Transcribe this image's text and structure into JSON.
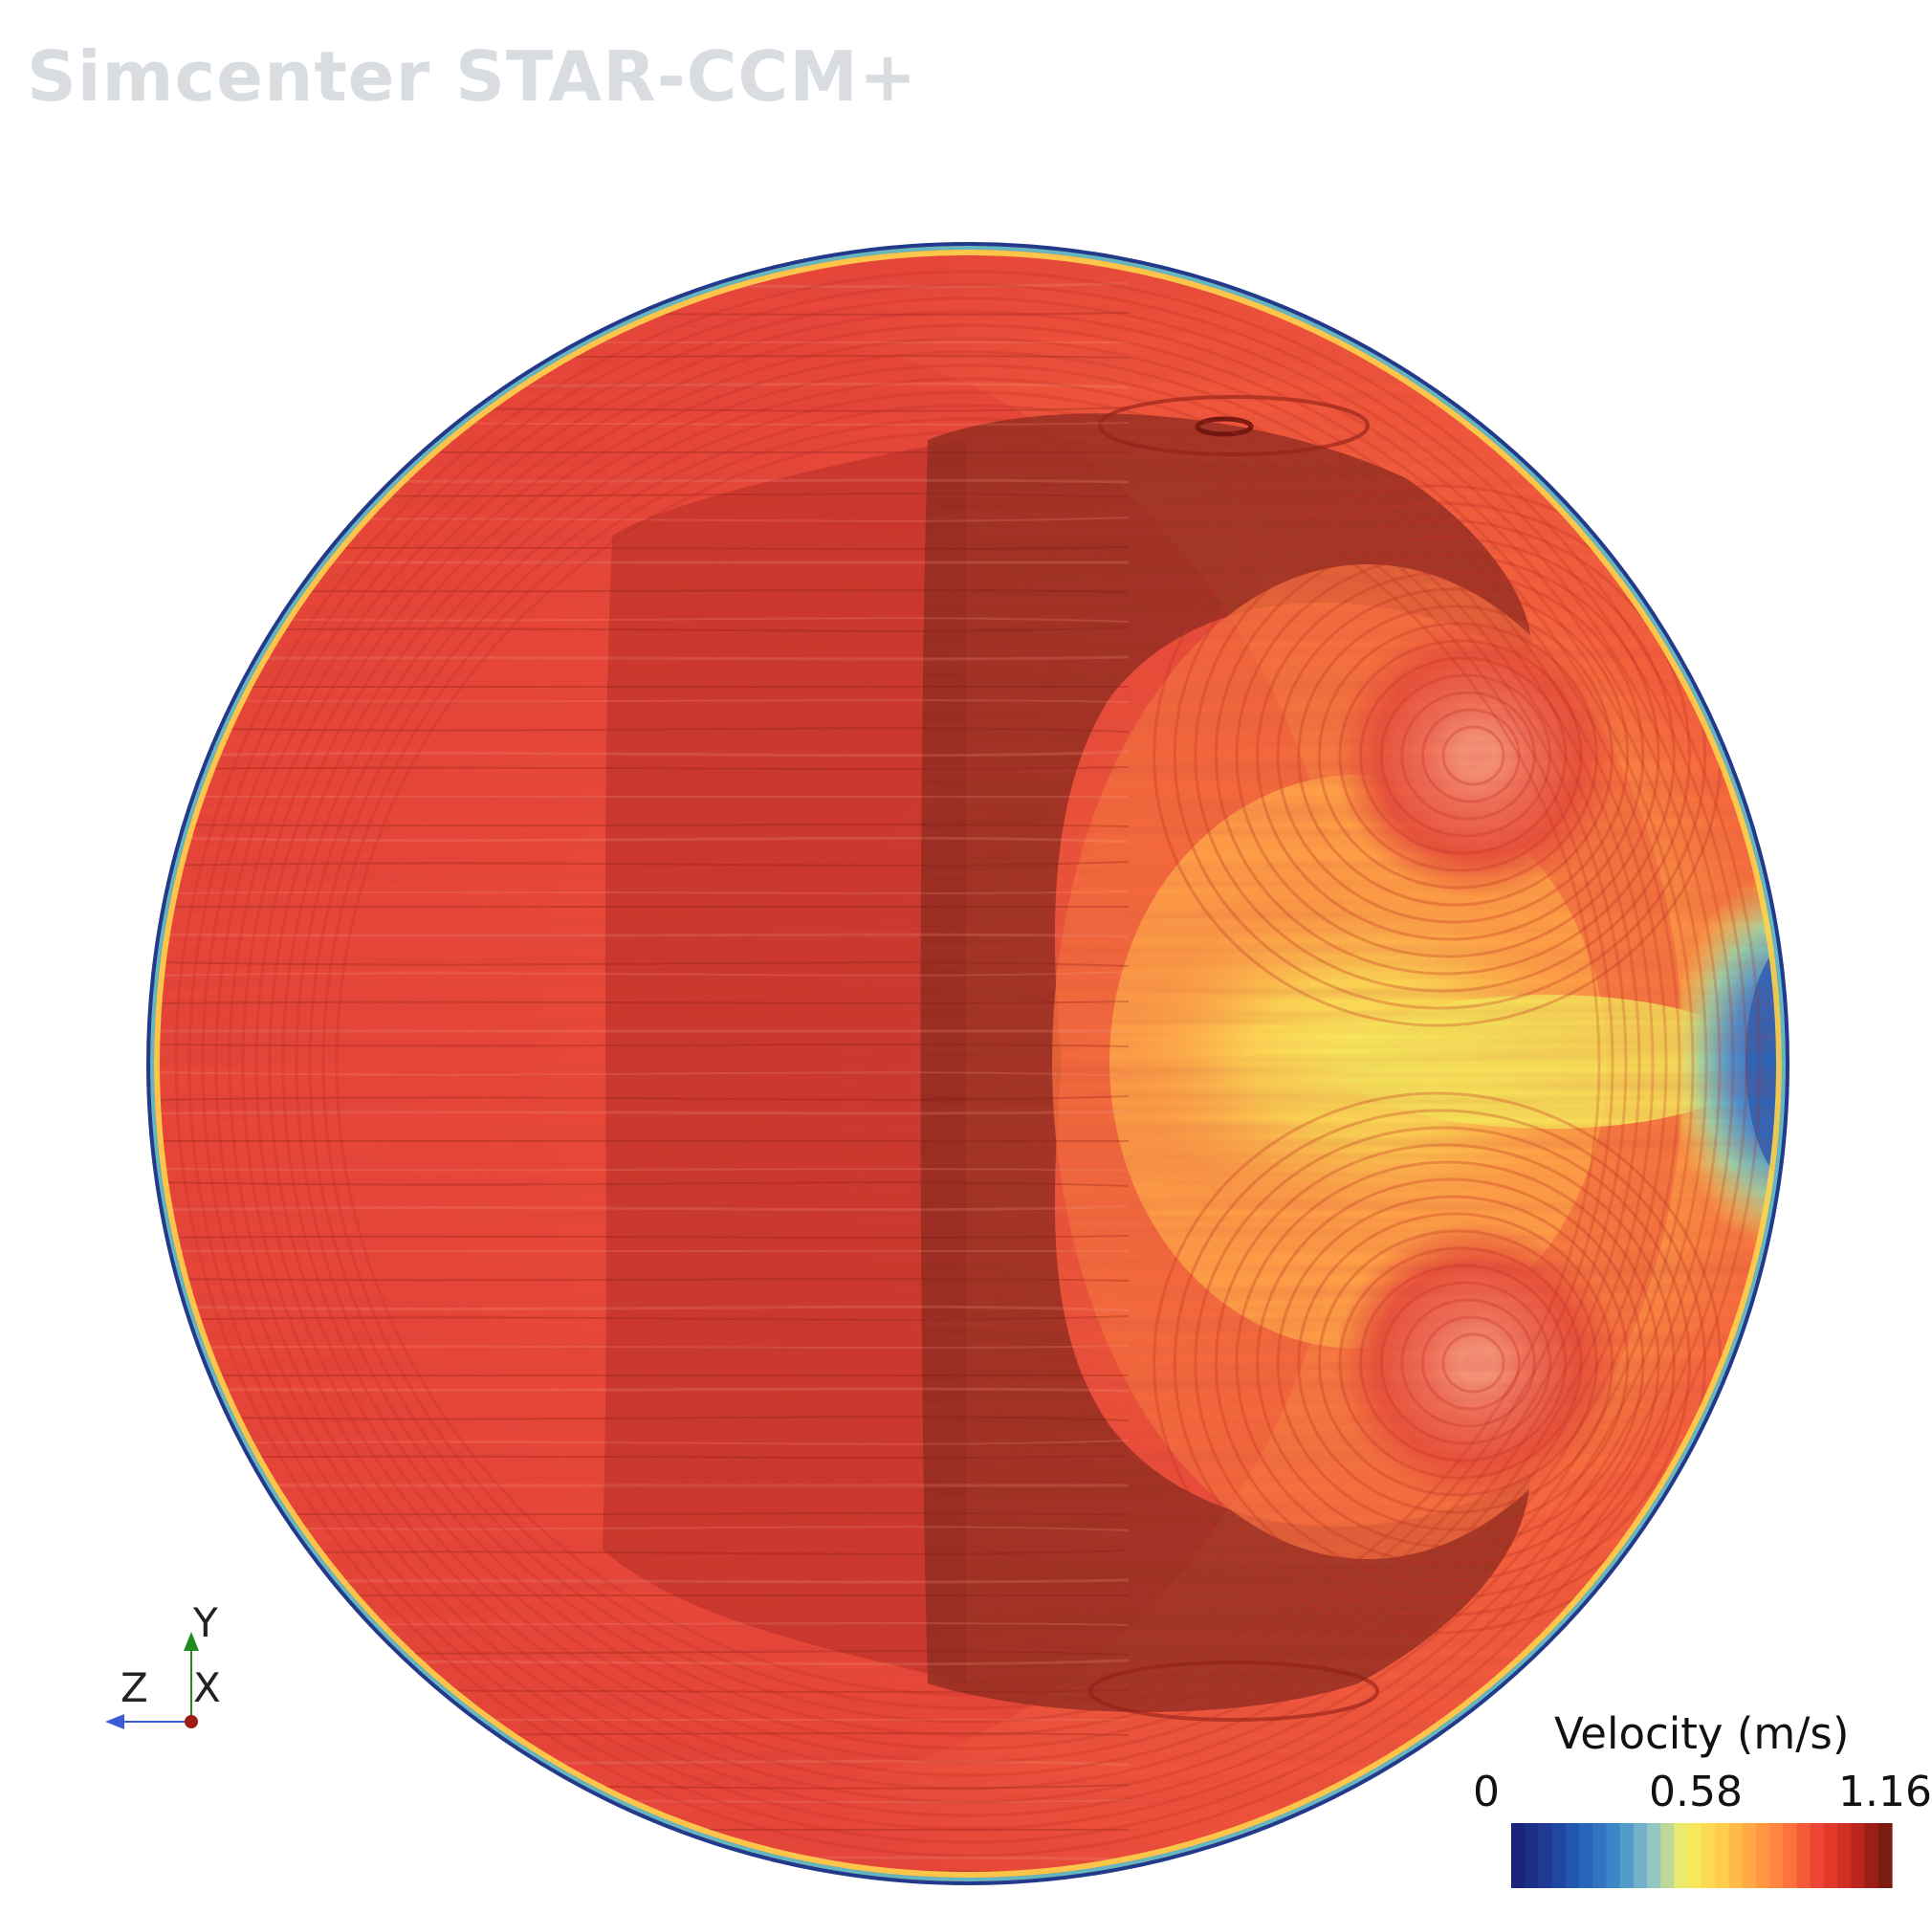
{
  "app": {
    "watermark": "Simcenter STAR-CCM+"
  },
  "axes_triad": {
    "y_label": "Y",
    "z_label": "Z",
    "x_label": "X"
  },
  "colors": {
    "y_axis": "#1f8a1f",
    "z_axis": "#3a5bd8",
    "x_axis_dot": "#a01c10",
    "scale": [
      "#1a2479",
      "#1f3f9a",
      "#2563b8",
      "#3f8cc9",
      "#8cc4c9",
      "#f4f061",
      "#ffd24a",
      "#ffa544",
      "#ff7a3e",
      "#ee4332",
      "#c8271f",
      "#7a1c12"
    ]
  },
  "legend": {
    "title": "Velocity (m/s)",
    "min_label": "0",
    "mid_label": "0.58",
    "max_label": "1.16",
    "bands": 28
  },
  "plot": {
    "field": "Velocity",
    "units": "m/s",
    "range": [
      0,
      1.16
    ]
  }
}
